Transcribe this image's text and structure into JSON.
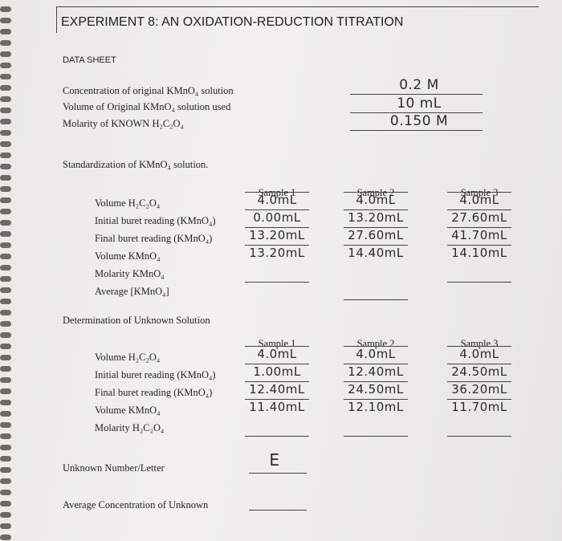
{
  "header": {
    "title": "EXPERIMENT 8: AN OXIDATION-REDUCTION TITRATION"
  },
  "data_sheet": {
    "heading": "DATA SHEET",
    "fields": [
      {
        "label": "Concentration of original KMnO₄ solution",
        "value": "0.2 M"
      },
      {
        "label": "Volume of Original KMnO₄ solution used",
        "value": "10 mL"
      },
      {
        "label": "Molarity of KNOWN H₂C₂O₄",
        "value": "0.150 M"
      }
    ]
  },
  "standardization": {
    "heading": "Standardization of KMnO₄ solution.",
    "columns": [
      "Sample 1",
      "Sample 2",
      "Sample 3"
    ],
    "rows": [
      {
        "label": "Volume H₂C₂O₄",
        "values": [
          "4.0mL",
          "4.0mL",
          "4.0mL"
        ]
      },
      {
        "label": "Initial buret reading (KMnO₄)",
        "values": [
          "0.00mL",
          "13.20mL",
          "27.60mL"
        ]
      },
      {
        "label": "Final buret reading (KMnO₄)",
        "values": [
          "13.20mL",
          "27.60mL",
          "41.70mL"
        ]
      },
      {
        "label": "Volume KMnO₄",
        "values": [
          "13.20mL",
          "14.40mL",
          "14.10mL"
        ]
      },
      {
        "label": "Molarity KMnO₄"
      },
      {
        "label": "Average [KMnO₄]"
      }
    ]
  },
  "unknown": {
    "heading": "Determination of Unknown Solution",
    "columns": [
      "Sample 1",
      "Sample 2",
      "Sample 3"
    ],
    "rows": [
      {
        "label": "Volume H₂C₂O₄",
        "values": [
          "4.0mL",
          "4.0mL",
          "4.0mL"
        ]
      },
      {
        "label": "Initial buret reading (KMnO₄)",
        "values": [
          "1.00mL",
          "12.40mL",
          "24.50mL"
        ]
      },
      {
        "label": "Final buret reading (KMnO₄)",
        "values": [
          "12.40mL",
          "24.50mL",
          "36.20mL"
        ]
      },
      {
        "label": "Volume KMnO₄",
        "values": [
          "11.40mL",
          "12.10mL",
          "11.70mL"
        ]
      },
      {
        "label": "Molarity H₂C₂O₄"
      }
    ]
  },
  "unknown_letter": {
    "label": "Unknown Number/Letter",
    "value": "E"
  },
  "average_concentration": {
    "label": "Average Concentration of Unknown"
  }
}
